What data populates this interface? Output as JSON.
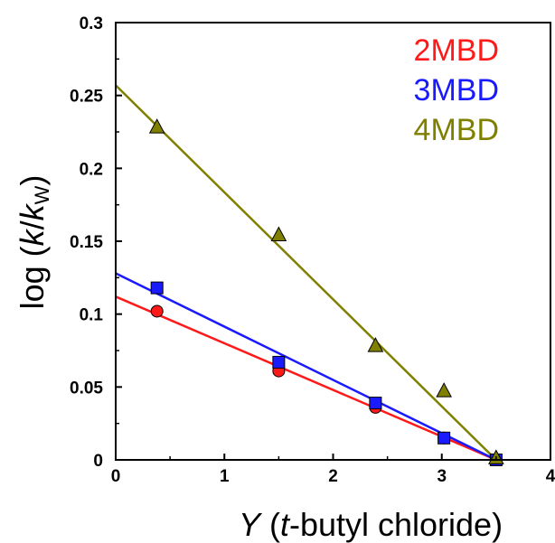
{
  "chart_data": {
    "type": "scatter",
    "xlabel": {
      "italic": "Y",
      "rest": " (",
      "italic2": "t",
      "rest2": "-butyl chloride)"
    },
    "ylabel": {
      "prefix": "log (",
      "k": "k",
      "slash": "/",
      "kw": "k",
      "sub": "W",
      "suffix": ")"
    },
    "xlim": [
      0,
      4
    ],
    "ylim": [
      0,
      0.3
    ],
    "xticks": [
      "0",
      "1",
      "2",
      "3",
      "4"
    ],
    "yticks": [
      "0",
      "0.05",
      "0.1",
      "0.15",
      "0.2",
      "0.25",
      "0.3"
    ],
    "grid": false,
    "legend_position": "top-right",
    "series": [
      {
        "name": "2MBD",
        "color": "#ff1a1a",
        "marker": "circle",
        "x": [
          0.38,
          1.5,
          2.39,
          3.02,
          3.5
        ],
        "y": [
          0.102,
          0.061,
          0.036,
          0.015,
          0.0
        ],
        "fit": {
          "x": [
            0,
            3.5
          ],
          "y": [
            0.112,
            0.0
          ]
        }
      },
      {
        "name": "3MBD",
        "color": "#1a1aff",
        "marker": "square",
        "x": [
          0.38,
          1.5,
          2.39,
          3.02,
          3.5
        ],
        "y": [
          0.118,
          0.067,
          0.039,
          0.015,
          0.0
        ],
        "fit": {
          "x": [
            0,
            3.5
          ],
          "y": [
            0.128,
            0.0
          ]
        }
      },
      {
        "name": "4MBD",
        "color": "#7f7f00",
        "marker": "triangle",
        "x": [
          0.38,
          1.5,
          2.39,
          3.02,
          3.5
        ],
        "y": [
          0.228,
          0.154,
          0.078,
          0.047,
          0.001
        ],
        "fit": {
          "x": [
            0,
            3.5
          ],
          "y": [
            0.257,
            0.0
          ]
        }
      }
    ]
  }
}
